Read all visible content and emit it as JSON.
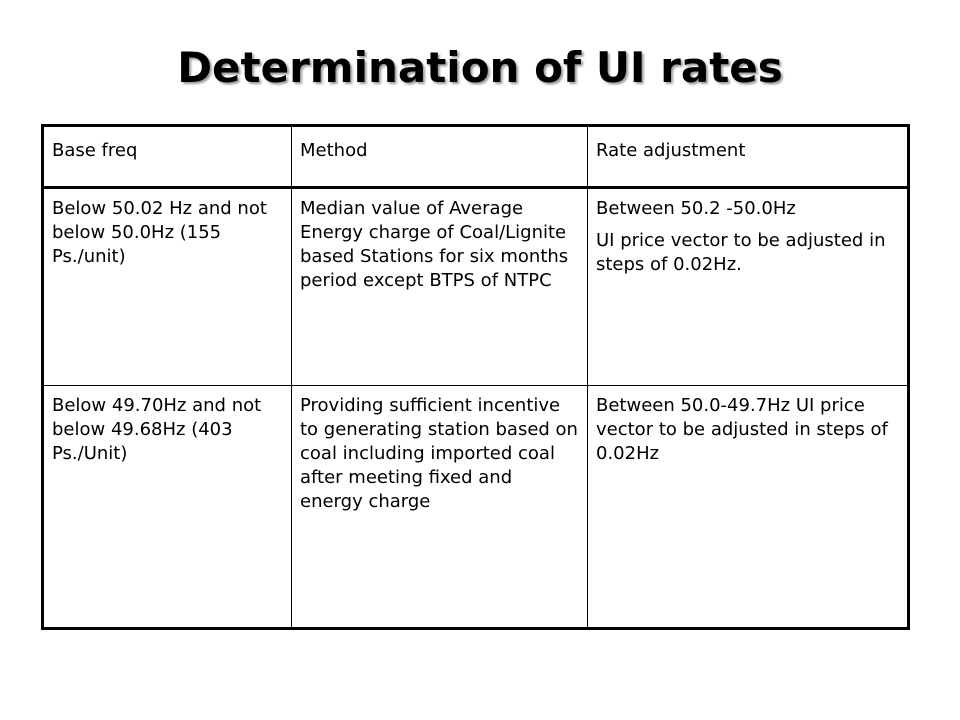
{
  "slide": {
    "title": "Determination of UI rates"
  },
  "table": {
    "headers": {
      "base_freq": "Base freq",
      "method": "Method",
      "rate_adjustment": "Rate adjustment"
    },
    "rows": [
      {
        "base_freq": "Below 50.02 Hz and not below 50.0Hz (155 Ps./unit)",
        "method": "Median value of Average Energy charge of Coal/Lignite based Stations for six months period except BTPS of NTPC",
        "rate_adjustment": [
          "Between 50.2 -50.0Hz",
          "UI price vector to be adjusted in steps of 0.02Hz."
        ]
      },
      {
        "base_freq": "Below 49.70Hz and not below 49.68Hz (403 Ps./Unit)",
        "method": "Providing sufficient incentive to generating station based on coal including imported coal after meeting fixed and energy charge",
        "rate_adjustment": [
          "Between 50.0-49.7Hz UI price vector to be adjusted in steps of 0.02Hz"
        ]
      }
    ]
  }
}
